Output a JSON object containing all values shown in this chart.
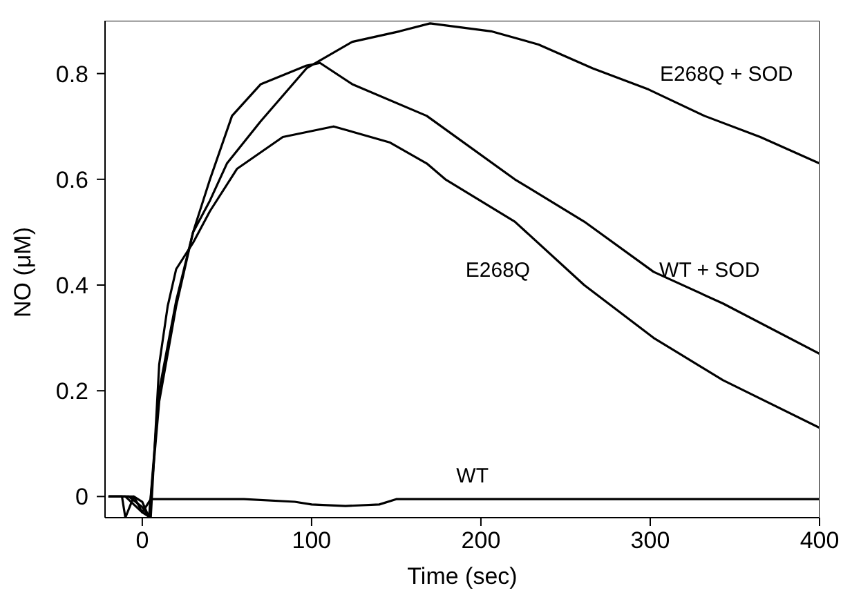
{
  "chart_data": {
    "type": "line",
    "xlabel": "Time (sec)",
    "ylabel": "NO (μM)",
    "xlim": [
      -22,
      400
    ],
    "ylim": [
      -0.04,
      0.9
    ],
    "xticks": [
      0,
      100,
      200,
      300,
      400
    ],
    "yticks": [
      0,
      0.2,
      0.4,
      0.6,
      0.8
    ],
    "grid": false,
    "legend": false,
    "marker": "none",
    "line_style": "solid",
    "series": [
      {
        "name": "E268Q + SOD",
        "color": "#000000",
        "x": [
          -20,
          -5,
          0,
          4,
          10,
          20,
          30,
          40,
          50,
          70,
          97,
          124,
          152,
          170,
          206,
          234,
          266,
          299,
          332,
          365,
          400
        ],
        "values": [
          0,
          0,
          -0.01,
          -0.04,
          0.18,
          0.36,
          0.5,
          0.56,
          0.63,
          0.71,
          0.81,
          0.86,
          0.88,
          0.895,
          0.88,
          0.855,
          0.81,
          0.77,
          0.72,
          0.68,
          0.63
        ]
      },
      {
        "name": "WT + SOD",
        "color": "#000000",
        "x": [
          -20,
          -8,
          0,
          4,
          10,
          20,
          30,
          40,
          53,
          70,
          97,
          105,
          124,
          168,
          220,
          261,
          302,
          343,
          400
        ],
        "values": [
          0,
          0,
          -0.02,
          -0.04,
          0.2,
          0.37,
          0.5,
          0.6,
          0.72,
          0.78,
          0.815,
          0.82,
          0.78,
          0.72,
          0.6,
          0.52,
          0.425,
          0.365,
          0.27
        ]
      },
      {
        "name": "E268Q",
        "color": "#000000",
        "x": [
          -20,
          -10,
          0,
          5,
          10,
          15,
          20,
          30,
          40,
          56,
          83,
          113,
          146,
          168,
          179,
          220,
          261,
          302,
          343,
          400
        ],
        "values": [
          0,
          0,
          -0.03,
          -0.04,
          0.25,
          0.36,
          0.43,
          0.48,
          0.54,
          0.62,
          0.68,
          0.7,
          0.67,
          0.63,
          0.6,
          0.52,
          0.4,
          0.3,
          0.22,
          0.13
        ]
      },
      {
        "name": "WT",
        "color": "#000000",
        "x": [
          -20,
          -12,
          -10,
          -5,
          0,
          5,
          20,
          60,
          90,
          100,
          120,
          140,
          150,
          200,
          300,
          400
        ],
        "values": [
          0,
          0,
          -0.04,
          0,
          -0.03,
          -0.005,
          -0.005,
          -0.005,
          -0.01,
          -0.015,
          -0.018,
          -0.015,
          -0.005,
          -0.005,
          -0.005,
          -0.005
        ]
      }
    ]
  }
}
